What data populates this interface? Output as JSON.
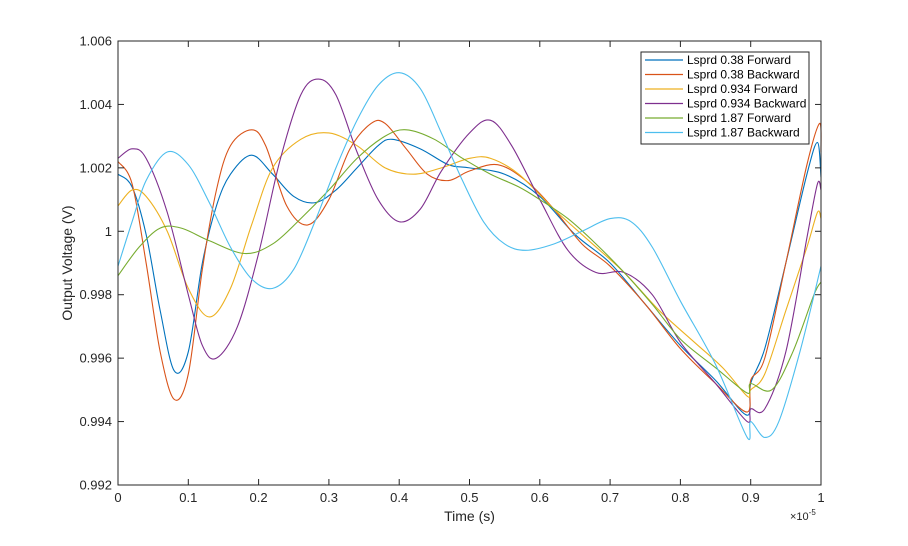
{
  "chart_data": {
    "type": "line",
    "xlabel": "Time (s)",
    "ylabel": "Output Voltage (V)",
    "x_exponent_label": "×10",
    "x_exponent_power": "-5",
    "xlim": [
      0,
      1
    ],
    "ylim": [
      0.992,
      1.006
    ],
    "x_ticks": [
      0,
      0.1,
      0.2,
      0.3,
      0.4,
      0.5,
      0.6,
      0.7,
      0.8,
      0.9,
      1
    ],
    "x_tick_labels": [
      "0",
      "0.1",
      "0.2",
      "0.3",
      "0.4",
      "0.5",
      "0.6",
      "0.7",
      "0.8",
      "0.9",
      "1"
    ],
    "y_ticks": [
      0.992,
      0.994,
      0.996,
      0.998,
      1.0,
      1.002,
      1.004,
      1.006
    ],
    "y_tick_labels": [
      "0.992",
      "0.994",
      "0.996",
      "0.998",
      "1",
      "1.002",
      "1.004",
      "1.006"
    ],
    "grid": false,
    "legend_position": "top-right",
    "series": [
      {
        "name": "Lsprd 0.38 Forward",
        "color": "#0072BD",
        "points": [
          [
            0,
            1.0018
          ],
          [
            0.02,
            1.0014
          ],
          [
            0.04,
            0.9999
          ],
          [
            0.06,
            0.9975
          ],
          [
            0.08,
            0.9956
          ],
          [
            0.1,
            0.9962
          ],
          [
            0.12,
            0.999
          ],
          [
            0.14,
            1.0008
          ],
          [
            0.16,
            1.0018
          ],
          [
            0.19,
            1.0024
          ],
          [
            0.22,
            1.0018
          ],
          [
            0.25,
            1.0011
          ],
          [
            0.28,
            1.0009
          ],
          [
            0.31,
            1.0013
          ],
          [
            0.34,
            1.002
          ],
          [
            0.37,
            1.0027
          ],
          [
            0.39,
            1.0029
          ],
          [
            0.43,
            1.0026
          ],
          [
            0.47,
            1.0021
          ],
          [
            0.5,
            1.002
          ],
          [
            0.55,
            1.0018
          ],
          [
            0.6,
            1.0011
          ],
          [
            0.65,
            0.9999
          ],
          [
            0.7,
            0.999
          ],
          [
            0.75,
            0.9977
          ],
          [
            0.8,
            0.9964
          ],
          [
            0.85,
            0.9953
          ],
          [
            0.895,
            0.9942
          ],
          [
            0.9,
            0.9952
          ],
          [
            0.92,
            0.9963
          ],
          [
            0.95,
            0.999
          ],
          [
            0.98,
            1.0018
          ],
          [
            0.995,
            1.0028
          ],
          [
            1,
            1.0017
          ]
        ]
      },
      {
        "name": "Lsprd 0.38 Backward",
        "color": "#D95319",
        "points": [
          [
            0,
            1.0022
          ],
          [
            0.02,
            1.0015
          ],
          [
            0.04,
            0.999
          ],
          [
            0.06,
            0.9962
          ],
          [
            0.08,
            0.9947
          ],
          [
            0.1,
            0.9955
          ],
          [
            0.12,
            0.9988
          ],
          [
            0.14,
            1.0013
          ],
          [
            0.16,
            1.0027
          ],
          [
            0.19,
            1.0032
          ],
          [
            0.21,
            1.0027
          ],
          [
            0.24,
            1.0008
          ],
          [
            0.27,
            1.0002
          ],
          [
            0.3,
            1.001
          ],
          [
            0.33,
            1.0026
          ],
          [
            0.36,
            1.0034
          ],
          [
            0.38,
            1.0034
          ],
          [
            0.41,
            1.0026
          ],
          [
            0.44,
            1.0018
          ],
          [
            0.47,
            1.0016
          ],
          [
            0.5,
            1.0019
          ],
          [
            0.54,
            1.0021
          ],
          [
            0.58,
            1.0016
          ],
          [
            0.62,
            1.0007
          ],
          [
            0.66,
            0.9996
          ],
          [
            0.7,
            0.9989
          ],
          [
            0.75,
            0.9977
          ],
          [
            0.8,
            0.9963
          ],
          [
            0.85,
            0.9952
          ],
          [
            0.895,
            0.9943
          ],
          [
            0.9,
            0.9953
          ],
          [
            0.92,
            0.996
          ],
          [
            0.95,
            0.999
          ],
          [
            0.98,
            1.0021
          ],
          [
            0.998,
            1.0034
          ],
          [
            1,
            1.0025
          ]
        ]
      },
      {
        "name": "Lsprd 0.934 Forward",
        "color": "#EDB120",
        "points": [
          [
            0,
            1.0008
          ],
          [
            0.02,
            1.0013
          ],
          [
            0.04,
            1.0011
          ],
          [
            0.07,
            1.0
          ],
          [
            0.1,
            0.9982
          ],
          [
            0.13,
            0.9973
          ],
          [
            0.16,
            0.9982
          ],
          [
            0.19,
            1.0002
          ],
          [
            0.22,
            1.002
          ],
          [
            0.26,
            1.0029
          ],
          [
            0.3,
            1.0031
          ],
          [
            0.34,
            1.0027
          ],
          [
            0.38,
            1.002
          ],
          [
            0.42,
            1.0018
          ],
          [
            0.46,
            1.002
          ],
          [
            0.5,
            1.0023
          ],
          [
            0.53,
            1.0023
          ],
          [
            0.57,
            1.0018
          ],
          [
            0.62,
            1.0007
          ],
          [
            0.67,
            0.9997
          ],
          [
            0.72,
            0.9987
          ],
          [
            0.77,
            0.9975
          ],
          [
            0.82,
            0.9965
          ],
          [
            0.86,
            0.9957
          ],
          [
            0.895,
            0.9948
          ],
          [
            0.9,
            0.995
          ],
          [
            0.92,
            0.9955
          ],
          [
            0.95,
            0.9975
          ],
          [
            0.98,
            0.9995
          ],
          [
            0.995,
            1.0006
          ],
          [
            1,
            1.0004
          ]
        ]
      },
      {
        "name": "Lsprd 0.934 Backward",
        "color": "#7E2F8E",
        "points": [
          [
            0,
            1.0023
          ],
          [
            0.02,
            1.0026
          ],
          [
            0.04,
            1.0023
          ],
          [
            0.07,
            1.0006
          ],
          [
            0.1,
            0.998
          ],
          [
            0.12,
            0.9964
          ],
          [
            0.14,
            0.996
          ],
          [
            0.17,
            0.997
          ],
          [
            0.2,
            0.9993
          ],
          [
            0.23,
            1.0022
          ],
          [
            0.26,
            1.0043
          ],
          [
            0.285,
            1.0048
          ],
          [
            0.31,
            1.0043
          ],
          [
            0.34,
            1.0025
          ],
          [
            0.37,
            1.001
          ],
          [
            0.4,
            1.0003
          ],
          [
            0.43,
            1.0007
          ],
          [
            0.46,
            1.0019
          ],
          [
            0.5,
            1.0031
          ],
          [
            0.53,
            1.0035
          ],
          [
            0.56,
            1.0027
          ],
          [
            0.6,
            1.001
          ],
          [
            0.64,
            0.9994
          ],
          [
            0.68,
            0.9987
          ],
          [
            0.72,
            0.9987
          ],
          [
            0.76,
            0.998
          ],
          [
            0.8,
            0.9965
          ],
          [
            0.85,
            0.9952
          ],
          [
            0.895,
            0.994
          ],
          [
            0.9,
            0.9944
          ],
          [
            0.92,
            0.9944
          ],
          [
            0.95,
            0.9962
          ],
          [
            0.98,
            0.9998
          ],
          [
            0.995,
            1.0015
          ],
          [
            1,
            1.0013
          ]
        ]
      },
      {
        "name": "Lsprd 1.87 Forward",
        "color": "#77AC30",
        "points": [
          [
            0,
            0.9986
          ],
          [
            0.03,
            0.9995
          ],
          [
            0.06,
            1.0001
          ],
          [
            0.09,
            1.0001
          ],
          [
            0.13,
            0.9997
          ],
          [
            0.18,
            0.9993
          ],
          [
            0.22,
            0.9996
          ],
          [
            0.26,
            1.0004
          ],
          [
            0.3,
            1.0013
          ],
          [
            0.34,
            1.0023
          ],
          [
            0.38,
            1.003
          ],
          [
            0.41,
            1.0032
          ],
          [
            0.45,
            1.0029
          ],
          [
            0.49,
            1.0023
          ],
          [
            0.53,
            1.0018
          ],
          [
            0.57,
            1.0014
          ],
          [
            0.6,
            1.001
          ],
          [
            0.64,
            1.0004
          ],
          [
            0.68,
            0.9996
          ],
          [
            0.72,
            0.9987
          ],
          [
            0.76,
            0.9977
          ],
          [
            0.8,
            0.9966
          ],
          [
            0.85,
            0.9957
          ],
          [
            0.895,
            0.9949
          ],
          [
            0.9,
            0.9952
          ],
          [
            0.93,
            0.995
          ],
          [
            0.96,
            0.9962
          ],
          [
            0.99,
            0.998
          ],
          [
            1,
            0.9984
          ]
        ]
      },
      {
        "name": "Lsprd 1.87 Backward",
        "color": "#4DBEEE",
        "points": [
          [
            0,
            0.9989
          ],
          [
            0.02,
            1.0003
          ],
          [
            0.04,
            1.0016
          ],
          [
            0.07,
            1.0025
          ],
          [
            0.1,
            1.0021
          ],
          [
            0.13,
            1.0009
          ],
          [
            0.16,
            0.9995
          ],
          [
            0.19,
            0.9985
          ],
          [
            0.22,
            0.9982
          ],
          [
            0.25,
            0.9988
          ],
          [
            0.28,
            1.0003
          ],
          [
            0.31,
            1.002
          ],
          [
            0.34,
            1.0035
          ],
          [
            0.37,
            1.0046
          ],
          [
            0.4,
            1.005
          ],
          [
            0.43,
            1.0045
          ],
          [
            0.46,
            1.0031
          ],
          [
            0.49,
            1.0016
          ],
          [
            0.52,
            1.0003
          ],
          [
            0.55,
            0.9996
          ],
          [
            0.58,
            0.9994
          ],
          [
            0.62,
            0.9996
          ],
          [
            0.66,
            1.0
          ],
          [
            0.7,
            1.0004
          ],
          [
            0.73,
            1.0003
          ],
          [
            0.76,
            0.9995
          ],
          [
            0.8,
            0.9978
          ],
          [
            0.85,
            0.9958
          ],
          [
            0.895,
            0.9935
          ],
          [
            0.9,
            0.994
          ],
          [
            0.92,
            0.9935
          ],
          [
            0.94,
            0.994
          ],
          [
            0.97,
            0.9962
          ],
          [
            1,
            0.9989
          ]
        ]
      }
    ]
  }
}
